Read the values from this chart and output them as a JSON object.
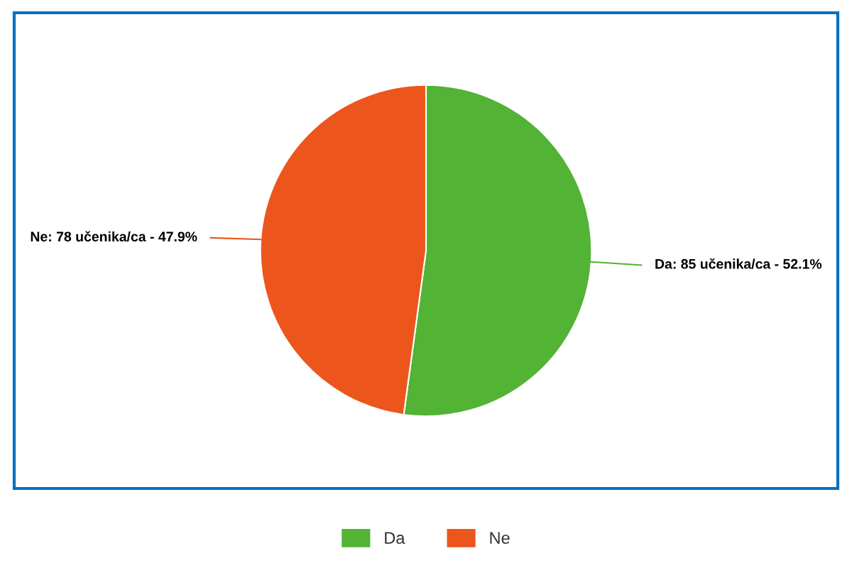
{
  "chart_data": {
    "type": "pie",
    "categories": [
      "Da",
      "Ne"
    ],
    "values": [
      85,
      78
    ],
    "colors": [
      "#52b335",
      "#ec561d"
    ],
    "value_labels": [
      "Da: 85 učenika/ca - 52.1%",
      "Ne: 78 učenika/ca - 47.9%"
    ],
    "legend": "bottom"
  }
}
